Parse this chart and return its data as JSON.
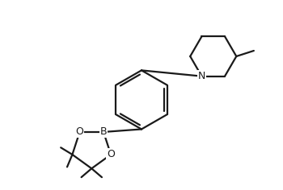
{
  "background_color": "#ffffff",
  "line_color": "#1a1a1a",
  "line_width": 1.6,
  "font_size": 8.5,
  "figsize": [
    3.5,
    2.36
  ],
  "dpi": 100,
  "xlim": [
    0,
    10
  ],
  "ylim": [
    0,
    6.74
  ]
}
